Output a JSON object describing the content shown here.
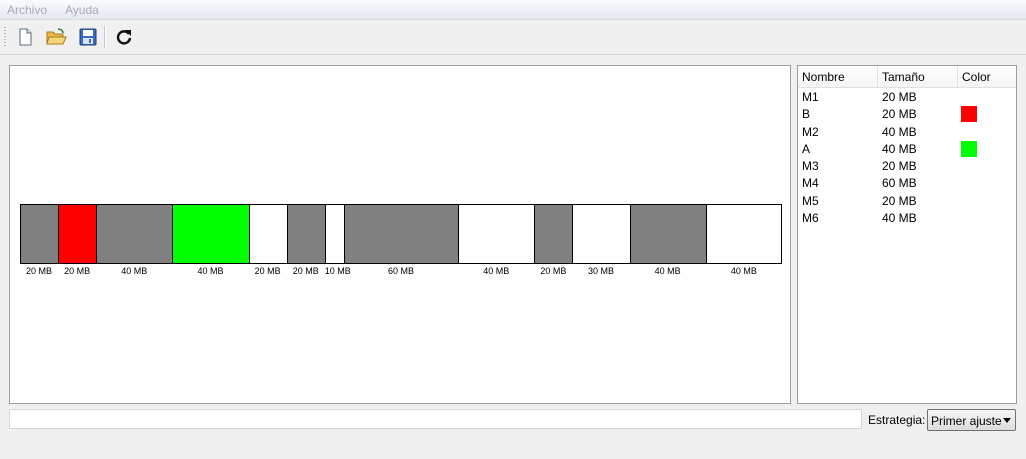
{
  "menu": {
    "file": "Archivo",
    "help": "Ayuda"
  },
  "toolbar": {
    "new_icon": "new-document-icon",
    "open_icon": "open-folder-icon",
    "save_icon": "save-icon",
    "refresh_icon": "refresh-icon"
  },
  "memory_map": {
    "blocks": [
      {
        "size": 20,
        "label": "20 MB",
        "color": "#808080"
      },
      {
        "size": 20,
        "label": "20 MB",
        "color": "#ff0000"
      },
      {
        "size": 40,
        "label": "40 MB",
        "color": "#808080"
      },
      {
        "size": 40,
        "label": "40 MB",
        "color": "#00ff00"
      },
      {
        "size": 20,
        "label": "20 MB",
        "color": "#ffffff"
      },
      {
        "size": 20,
        "label": "20 MB",
        "color": "#808080"
      },
      {
        "size": 10,
        "label": "10 MB",
        "color": "#ffffff"
      },
      {
        "size": 60,
        "label": "60 MB",
        "color": "#808080"
      },
      {
        "size": 40,
        "label": "40 MB",
        "color": "#ffffff"
      },
      {
        "size": 20,
        "label": "20 MB",
        "color": "#808080"
      },
      {
        "size": 30,
        "label": "30 MB",
        "color": "#ffffff"
      },
      {
        "size": 40,
        "label": "40 MB",
        "color": "#808080"
      },
      {
        "size": 40,
        "label": "40 MB",
        "color": "#ffffff"
      }
    ]
  },
  "process_table": {
    "headers": {
      "name": "Nombre",
      "size": "Tamaño",
      "color": "Color"
    },
    "rows": [
      {
        "name": "M1",
        "size": "20 MB",
        "color": ""
      },
      {
        "name": "B",
        "size": "20 MB",
        "color": "#ff0000"
      },
      {
        "name": "M2",
        "size": "40 MB",
        "color": ""
      },
      {
        "name": "A",
        "size": "40 MB",
        "color": "#00ff00"
      },
      {
        "name": "M3",
        "size": "20 MB",
        "color": ""
      },
      {
        "name": "M4",
        "size": "60 MB",
        "color": ""
      },
      {
        "name": "M5",
        "size": "20 MB",
        "color": ""
      },
      {
        "name": "M6",
        "size": "40 MB",
        "color": ""
      }
    ]
  },
  "status": {
    "text": ""
  },
  "strategy": {
    "label": "Estrategia:",
    "selected": "Primer ajuste"
  }
}
